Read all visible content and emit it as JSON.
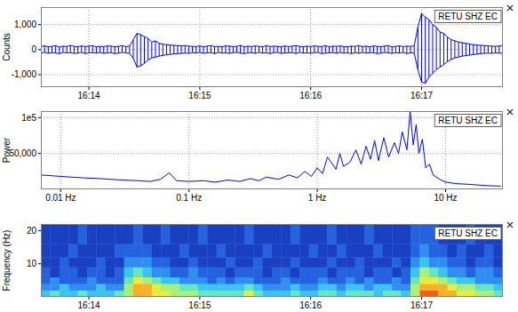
{
  "chart_data": [
    {
      "type": "line",
      "annotation": "RETU SHZ EC",
      "ylabel": "Counts",
      "x": [
        58414,
        58416,
        58418,
        58420,
        58422,
        58424,
        58426,
        58428,
        58430,
        58432,
        58434,
        58436,
        58438,
        58440,
        58442,
        58444,
        58446,
        58448,
        58450,
        58452,
        58454,
        58456,
        58458,
        58460,
        58462,
        58464,
        58466,
        58468,
        58470,
        58472,
        58474,
        58476,
        58478,
        58480,
        58482,
        58484,
        58486,
        58488,
        58490,
        58492,
        58494,
        58496,
        58498,
        58500,
        58502,
        58504,
        58506,
        58508,
        58510,
        58512,
        58514,
        58516,
        58518,
        58520,
        58522,
        58524,
        58526,
        58528,
        58530,
        58532,
        58534,
        58536,
        58538,
        58540,
        58542,
        58544,
        58546,
        58548,
        58550,
        58552,
        58554,
        58556,
        58558,
        58560,
        58562,
        58564,
        58566,
        58568,
        58570,
        58572,
        58574,
        58576,
        58578,
        58580,
        58582,
        58584,
        58586,
        58588,
        58590,
        58592,
        58594,
        58596,
        58598,
        58600,
        58602,
        58604,
        58606,
        58608,
        58610,
        58612,
        58614,
        58616,
        58618,
        58620,
        58622,
        58624,
        58626,
        58628,
        58630,
        58632,
        58634,
        58636,
        58638,
        58640,
        58642,
        58644,
        58646,
        58648,
        58650,
        58652,
        58654,
        58656,
        58658,
        58660,
        58662,
        58664
      ],
      "series": [
        {
          "color": "#0000ff",
          "values": [
            120,
            150,
            110,
            130,
            160,
            100,
            140,
            120,
            170,
            130,
            110,
            150,
            120,
            140,
            160,
            110,
            130,
            120,
            150,
            140,
            110,
            130,
            160,
            120,
            140,
            400,
            650,
            600,
            520,
            450,
            300,
            350,
            250,
            220,
            200,
            180,
            170,
            160,
            150,
            160,
            140,
            130,
            120,
            150,
            110,
            140,
            160,
            120,
            130,
            110,
            150,
            140,
            120,
            130,
            170,
            110,
            140,
            120,
            150,
            130,
            110,
            160,
            120,
            140,
            130,
            110,
            150,
            120,
            140,
            160,
            130,
            110,
            140,
            120,
            150,
            130,
            120,
            160,
            110,
            140,
            130,
            150,
            120,
            110,
            140,
            130,
            160,
            120,
            140,
            110,
            150,
            130,
            120,
            140,
            160,
            110,
            130,
            150,
            120,
            140,
            130,
            150,
            900,
            1450,
            1300,
            1200,
            1000,
            900,
            700,
            650,
            500,
            400,
            350,
            300,
            280,
            250,
            220,
            200,
            180,
            170,
            160,
            150,
            140,
            130,
            150,
            140
          ]
        },
        {
          "color": "#0000ff",
          "values": [
            -130,
            -110,
            -150,
            -120,
            -140,
            -160,
            -110,
            -130,
            -120,
            -150,
            -140,
            -110,
            -160,
            -130,
            -120,
            -140,
            -110,
            -150,
            -130,
            -120,
            -160,
            -140,
            -110,
            -130,
            -150,
            -350,
            -700,
            -650,
            -550,
            -420,
            -330,
            -300,
            -260,
            -230,
            -210,
            -190,
            -170,
            -160,
            -150,
            -140,
            -150,
            -120,
            -140,
            -110,
            -150,
            -130,
            -120,
            -160,
            -110,
            -140,
            -130,
            -150,
            -120,
            -110,
            -140,
            -160,
            -130,
            -120,
            -150,
            -110,
            -140,
            -130,
            -160,
            -120,
            -110,
            -150,
            -140,
            -130,
            -120,
            -160,
            -110,
            -140,
            -130,
            -150,
            -120,
            -110,
            -160,
            -140,
            -130,
            -120,
            -150,
            -110,
            -140,
            -130,
            -160,
            -120,
            -150,
            -110,
            -140,
            -130,
            -120,
            -160,
            -140,
            -110,
            -130,
            -150,
            -120,
            -140,
            -110,
            -160,
            -130,
            -140,
            -800,
            -1300,
            -1350,
            -1100,
            -950,
            -800,
            -700,
            -600,
            -480,
            -400,
            -330,
            -300,
            -260,
            -240,
            -220,
            -200,
            -180,
            -160,
            -150,
            -140,
            -150,
            -130,
            -140,
            -150
          ]
        }
      ],
      "xlim": [
        58414,
        58664
      ],
      "xticks": [
        {
          "value": 58440,
          "label": "16:14"
        },
        {
          "value": 58500,
          "label": "16:15"
        },
        {
          "value": 58560,
          "label": "16:16"
        },
        {
          "value": 58620,
          "label": "16:17"
        }
      ],
      "ylim": [
        -1500,
        1700
      ],
      "yticks": [
        {
          "value": -1000,
          "label": "-1,000"
        },
        0,
        {
          "value": 1000,
          "label": "1,000"
        }
      ],
      "grid": true
    },
    {
      "type": "line",
      "annotation": "RETU SHZ EC",
      "ylabel": "Power",
      "color": "#0000ff",
      "log": "x",
      "x": [
        0.007,
        0.01,
        0.015,
        0.02,
        0.03,
        0.04,
        0.05,
        0.06,
        0.07,
        0.08,
        0.1,
        0.13,
        0.16,
        0.2,
        0.25,
        0.3,
        0.35,
        0.4,
        0.5,
        0.6,
        0.7,
        0.8,
        0.9,
        1.0,
        1.1,
        1.2,
        1.4,
        1.5,
        1.6,
        1.8,
        2.0,
        2.2,
        2.4,
        2.6,
        2.8,
        3.0,
        3.3,
        3.6,
        4.0,
        4.3,
        4.6,
        5.0,
        5.3,
        5.6,
        5.9,
        6.2,
        6.6,
        7.0,
        7.5,
        8.0,
        9.0,
        10,
        12,
        15,
        18,
        22,
        27
      ],
      "values": [
        20000,
        18000,
        16000,
        15000,
        13000,
        12000,
        11000,
        14000,
        23000,
        12000,
        11000,
        12000,
        10000,
        13000,
        11000,
        15000,
        12000,
        17000,
        14000,
        20000,
        16000,
        25000,
        18000,
        30000,
        22000,
        45000,
        28000,
        50000,
        32000,
        38000,
        55000,
        35000,
        60000,
        42000,
        68000,
        40000,
        72000,
        45000,
        65000,
        50000,
        80000,
        55000,
        109000,
        62000,
        90000,
        50000,
        70000,
        30000,
        35000,
        20000,
        14000,
        10000,
        8000,
        7000,
        6000,
        5000,
        4500
      ],
      "xlim": [
        0.007,
        28
      ],
      "xticks": [
        {
          "value": 0.01,
          "label": "0.01 Hz"
        },
        {
          "value": 0.1,
          "label": "0.1 Hz"
        },
        {
          "value": 1,
          "label": "1 Hz"
        },
        {
          "value": 10,
          "label": "10 Hz"
        }
      ],
      "ylim": [
        0,
        109000
      ],
      "yticks": [
        {
          "value": 50000,
          "label": "50,000"
        },
        {
          "value": 100000,
          "label": "1e5"
        }
      ],
      "grid": true
    },
    {
      "type": "heatmap",
      "annotation": "RETU SHZ EC",
      "ylabel": "Frequency (Hz)",
      "x": [
        58414,
        58419,
        58424,
        58429,
        58434,
        58439,
        58444,
        58449,
        58454,
        58459,
        58464,
        58469,
        58474,
        58479,
        58484,
        58489,
        58494,
        58499,
        58504,
        58509,
        58514,
        58519,
        58524,
        58529,
        58534,
        58539,
        58544,
        58549,
        58554,
        58559,
        58564,
        58569,
        58574,
        58579,
        58584,
        58589,
        58594,
        58599,
        58604,
        58609,
        58614,
        58619,
        58624,
        58629,
        58634,
        58639,
        58644,
        58649,
        58654,
        58659,
        58664
      ],
      "y": [
        0,
        2,
        4,
        6,
        9,
        12,
        16,
        22
      ],
      "cells": [
        [
          4,
          5,
          4,
          4,
          5,
          4,
          4,
          4,
          5,
          6,
          8,
          8,
          7,
          7,
          6,
          6,
          6,
          5,
          5,
          5,
          5,
          5,
          7,
          5,
          4,
          4,
          4,
          5,
          4,
          4,
          5,
          5,
          4,
          5,
          5,
          5,
          4,
          5,
          5,
          4,
          6,
          9,
          9,
          8,
          8,
          7,
          7,
          6,
          6,
          5
        ],
        [
          3,
          3,
          4,
          3,
          3,
          3,
          4,
          3,
          3,
          6,
          8,
          8,
          7,
          6,
          6,
          5,
          5,
          4,
          4,
          4,
          4,
          4,
          5,
          4,
          3,
          3,
          3,
          4,
          3,
          3,
          4,
          4,
          3,
          4,
          4,
          3,
          4,
          4,
          3,
          3,
          6,
          8,
          8,
          8,
          7,
          6,
          6,
          5,
          5,
          4
        ],
        [
          2,
          3,
          2,
          2,
          2,
          3,
          2,
          2,
          2,
          5,
          7,
          6,
          5,
          4,
          4,
          3,
          3,
          3,
          2,
          3,
          2,
          3,
          3,
          2,
          2,
          2,
          3,
          2,
          2,
          2,
          3,
          2,
          2,
          3,
          2,
          3,
          2,
          2,
          3,
          2,
          5,
          7,
          7,
          6,
          5,
          4,
          4,
          3,
          3,
          3
        ],
        [
          2,
          1,
          2,
          2,
          1,
          2,
          2,
          1,
          2,
          4,
          5,
          4,
          3,
          3,
          2,
          2,
          3,
          2,
          2,
          2,
          1,
          2,
          2,
          2,
          1,
          2,
          2,
          1,
          2,
          2,
          2,
          1,
          2,
          2,
          2,
          1,
          2,
          2,
          1,
          2,
          4,
          6,
          5,
          4,
          3,
          3,
          2,
          3,
          3,
          2
        ],
        [
          1,
          1,
          2,
          1,
          1,
          1,
          2,
          1,
          1,
          3,
          3,
          3,
          2,
          2,
          1,
          1,
          2,
          1,
          1,
          1,
          2,
          1,
          1,
          2,
          1,
          1,
          1,
          2,
          1,
          1,
          1,
          2,
          1,
          1,
          2,
          1,
          1,
          1,
          2,
          1,
          3,
          4,
          3,
          3,
          2,
          2,
          1,
          2,
          2,
          1
        ],
        [
          1,
          1,
          1,
          2,
          1,
          1,
          1,
          1,
          2,
          2,
          2,
          2,
          1,
          1,
          1,
          2,
          1,
          1,
          1,
          2,
          1,
          1,
          1,
          1,
          2,
          1,
          1,
          1,
          1,
          2,
          1,
          1,
          2,
          1,
          1,
          1,
          2,
          1,
          1,
          1,
          2,
          3,
          2,
          2,
          1,
          2,
          1,
          1,
          2,
          1
        ],
        [
          1,
          1,
          1,
          1,
          2,
          1,
          1,
          1,
          1,
          1,
          2,
          1,
          1,
          2,
          1,
          1,
          1,
          2,
          1,
          1,
          1,
          1,
          2,
          1,
          1,
          1,
          1,
          2,
          1,
          1,
          1,
          2,
          1,
          1,
          1,
          2,
          1,
          1,
          1,
          1,
          2,
          2,
          2,
          1,
          1,
          1,
          2,
          1,
          1,
          1
        ]
      ],
      "zlim": [
        0,
        9
      ],
      "xlim": [
        58414,
        58664
      ],
      "xticks": [
        {
          "value": 58440,
          "label": "16:14"
        },
        {
          "value": 58500,
          "label": "16:15"
        },
        {
          "value": 58560,
          "label": "16:16"
        },
        {
          "value": 58620,
          "label": "16:17"
        }
      ],
      "ylim": [
        0,
        22
      ],
      "yticks": [
        10,
        20
      ]
    }
  ]
}
